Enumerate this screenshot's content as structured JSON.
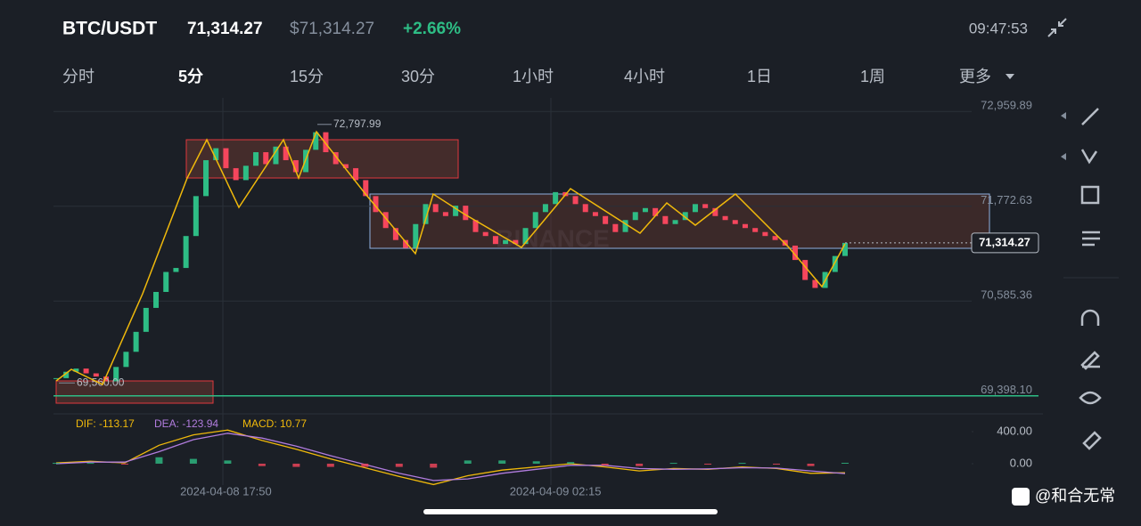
{
  "header": {
    "pair": "BTC/USDT",
    "price": "71,314.27",
    "usd_price": "$71,314.27",
    "change": "+2.66%",
    "clock": "09:47:53"
  },
  "tabs": [
    "分时",
    "5分",
    "15分",
    "30分",
    "1小时",
    "4小时",
    "1日",
    "1周",
    "更多"
  ],
  "watermark": "BINANCE",
  "footer": "@和合无常",
  "chart_data": [
    {
      "type": "candlestick",
      "colors": {
        "up": "#2ebd85",
        "down": "#f6465d"
      },
      "values": [
        69620,
        69700,
        69740,
        69680,
        69640,
        69580,
        69760,
        69950,
        70200,
        70500,
        70700,
        70950,
        71000,
        71400,
        71900,
        72350,
        72500,
        72250,
        72100,
        72280,
        72450,
        72300,
        72520,
        72350,
        72200,
        72480,
        72700,
        72450,
        72300,
        72250,
        72100,
        71900,
        71700,
        71500,
        71350,
        71250,
        71550,
        71800,
        71700,
        71650,
        71780,
        71600,
        71450,
        71400,
        71300,
        71350,
        71300,
        71500,
        71700,
        71800,
        71950,
        71900,
        71800,
        71700,
        71650,
        71550,
        71450,
        71600,
        71700,
        71750,
        71650,
        71550,
        71600,
        71700,
        71800,
        71750,
        71650,
        71600,
        71550,
        71500,
        71450,
        71400,
        71350,
        71280,
        71100,
        70850,
        70750,
        70950,
        71150,
        71314.27
      ],
      "ylim": [
        69340,
        73130
      ],
      "yticks": [
        {
          "value": 72959.89,
          "label": "72,959.89"
        },
        {
          "value": 71772.63,
          "label": "71,772.63"
        },
        {
          "value": 70585.36,
          "label": "70,585.36"
        },
        {
          "value": 69398.1,
          "label": "69,398.10"
        }
      ],
      "xticks": [
        {
          "value": 17,
          "label": "2024-04-08 17:50"
        },
        {
          "value": 50,
          "label": "2024-04-09 02:15"
        }
      ],
      "high": {
        "value": 72797.99,
        "label": "72,797.99"
      },
      "low": {
        "value": 69560.0,
        "label": "69,560.00"
      },
      "last_price": {
        "value": 71314.27,
        "label": "71,314.27"
      }
    },
    {
      "type": "macd",
      "ylim": [
        -267,
        622
      ],
      "yticks": [
        {
          "value": 400,
          "label": "400.00"
        },
        {
          "value": 0,
          "label": "0.00"
        }
      ],
      "series": [
        {
          "name": "DIF: -113.17",
          "color": "#f0b90b",
          "type": "line",
          "values": [
            10,
            30,
            10,
            230,
            360,
            420,
            290,
            180,
            60,
            -50,
            -160,
            -260,
            -150,
            -80,
            -40,
            0,
            -40,
            -90,
            -60,
            -70,
            -40,
            -60,
            -120,
            -113.17
          ]
        },
        {
          "name": "DEA: -123.94",
          "color": "#b17cde",
          "type": "line",
          "values": [
            0,
            20,
            20,
            150,
            300,
            380,
            320,
            220,
            100,
            -10,
            -120,
            -210,
            -190,
            -120,
            -70,
            -20,
            -20,
            -60,
            -70,
            -65,
            -50,
            -55,
            -90,
            -123.94
          ]
        },
        {
          "name": "MACD: 10.77",
          "color": "#f0b90b",
          "type": "bar",
          "values": [
            10,
            10,
            -10,
            80,
            60,
            40,
            -30,
            -40,
            -40,
            -40,
            -40,
            -50,
            40,
            40,
            30,
            20,
            -20,
            -30,
            10,
            -5,
            10,
            -5,
            -30,
            10.77
          ]
        }
      ]
    }
  ]
}
